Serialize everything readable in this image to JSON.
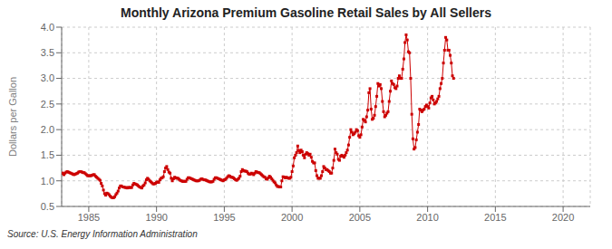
{
  "chart_data": {
    "type": "line",
    "title": "Monthly Arizona Premium Gasoline Retail Sales by All Sellers",
    "ylabel": "Dollars per Gallon",
    "annotations": [
      "Source: U.S. Energy Information Administration"
    ],
    "color": "#cc0000",
    "marker": "square",
    "grid": true,
    "xlim": [
      1983,
      2022
    ],
    "ylim": [
      0.5,
      4.0
    ],
    "xticks": [
      1985,
      1990,
      1995,
      2000,
      2005,
      2010,
      2015,
      2020
    ],
    "yticks": [
      0.5,
      {
        "value": 1.0,
        "label": "1.0"
      },
      1.5,
      {
        "value": 2.0,
        "label": "2.0"
      },
      2.5,
      {
        "value": 3.0,
        "label": "3.0"
      },
      3.5,
      {
        "value": 4.0,
        "label": "4.0"
      }
    ],
    "x": [
      1983,
      1983.0833333333333,
      1983.1666666666667,
      1983.25,
      1983.3333333333333,
      1983.4166666666667,
      1983.5,
      1983.5833333333333,
      1983.6666666666667,
      1983.75,
      1983.8333333333333,
      1983.9166666666667,
      1984,
      1984.0833333333333,
      1984.1666666666667,
      1984.25,
      1984.3333333333333,
      1984.4166666666667,
      1984.5,
      1984.5833333333333,
      1984.6666666666667,
      1984.75,
      1984.8333333333333,
      1984.9166666666667,
      1985,
      1985.0833333333333,
      1985.1666666666667,
      1985.25,
      1985.3333333333333,
      1985.4166666666667,
      1985.5,
      1985.5833333333333,
      1985.6666666666667,
      1985.75,
      1985.8333333333333,
      1985.9166666666667,
      1986,
      1986.0833333333333,
      1986.1666666666667,
      1986.25,
      1986.3333333333333,
      1986.4166666666667,
      1986.5,
      1986.5833333333333,
      1986.6666666666667,
      1986.75,
      1986.8333333333333,
      1986.9166666666667,
      1987,
      1987.0833333333333,
      1987.1666666666667,
      1987.25,
      1987.3333333333333,
      1987.4166666666667,
      1987.5,
      1987.5833333333333,
      1987.6666666666667,
      1987.75,
      1987.8333333333333,
      1987.9166666666667,
      1988,
      1988.0833333333333,
      1988.1666666666667,
      1988.25,
      1988.3333333333333,
      1988.4166666666667,
      1988.5,
      1988.5833333333333,
      1988.6666666666667,
      1988.75,
      1988.8333333333333,
      1988.9166666666667,
      1989,
      1989.0833333333333,
      1989.1666666666667,
      1989.25,
      1989.3333333333333,
      1989.4166666666667,
      1989.5,
      1989.5833333333333,
      1989.6666666666667,
      1989.75,
      1989.8333333333333,
      1989.9166666666667,
      1990,
      1990.0833333333333,
      1990.1666666666667,
      1990.25,
      1990.3333333333333,
      1990.4166666666667,
      1990.5,
      1990.5833333333333,
      1990.6666666666667,
      1990.75,
      1990.8333333333333,
      1990.9166666666667,
      1991,
      1991.0833333333333,
      1991.1666666666667,
      1991.25,
      1991.3333333333333,
      1991.4166666666667,
      1991.5,
      1991.5833333333333,
      1991.6666666666667,
      1991.75,
      1991.8333333333333,
      1991.9166666666667,
      1992,
      1992.0833333333333,
      1992.1666666666667,
      1992.25,
      1992.3333333333333,
      1992.4166666666667,
      1992.5,
      1992.5833333333333,
      1992.6666666666667,
      1992.75,
      1992.8333333333333,
      1992.9166666666667,
      1993,
      1993.0833333333333,
      1993.1666666666667,
      1993.25,
      1993.3333333333333,
      1993.4166666666667,
      1993.5,
      1993.5833333333333,
      1993.6666666666667,
      1993.75,
      1993.8333333333333,
      1993.9166666666667,
      1994,
      1994.0833333333333,
      1994.1666666666667,
      1994.25,
      1994.3333333333333,
      1994.4166666666667,
      1994.5,
      1994.5833333333333,
      1994.6666666666667,
      1994.75,
      1994.8333333333333,
      1994.9166666666667,
      1995,
      1995.0833333333333,
      1995.1666666666667,
      1995.25,
      1995.3333333333333,
      1995.4166666666667,
      1995.5,
      1995.5833333333333,
      1995.6666666666667,
      1995.75,
      1995.8333333333333,
      1995.9166666666667,
      1996,
      1996.0833333333333,
      1996.1666666666667,
      1996.25,
      1996.3333333333333,
      1996.4166666666667,
      1996.5,
      1996.5833333333333,
      1996.6666666666667,
      1996.75,
      1996.8333333333333,
      1996.9166666666667,
      1997,
      1997.0833333333333,
      1997.1666666666667,
      1997.25,
      1997.3333333333333,
      1997.4166666666667,
      1997.5,
      1997.5833333333333,
      1997.6666666666667,
      1997.75,
      1997.8333333333333,
      1997.9166666666667,
      1998,
      1998.0833333333333,
      1998.1666666666667,
      1998.25,
      1998.3333333333333,
      1998.4166666666667,
      1998.5,
      1998.5833333333333,
      1998.6666666666667,
      1998.75,
      1998.8333333333333,
      1998.9166666666667,
      1999,
      1999.0833333333333,
      1999.1666666666667,
      1999.25,
      1999.3333333333333,
      1999.4166666666667,
      1999.5,
      1999.5833333333333,
      1999.6666666666667,
      1999.75,
      1999.8333333333333,
      1999.9166666666667,
      2000,
      2000.0833333333333,
      2000.1666666666667,
      2000.25,
      2000.3333333333333,
      2000.4166666666667,
      2000.5,
      2000.5833333333333,
      2000.6666666666667,
      2000.75,
      2000.8333333333333,
      2000.9166666666667,
      2001,
      2001.0833333333333,
      2001.1666666666667,
      2001.25,
      2001.3333333333333,
      2001.4166666666667,
      2001.5,
      2001.5833333333333,
      2001.6666666666667,
      2001.75,
      2001.8333333333333,
      2001.9166666666667,
      2002,
      2002.0833333333333,
      2002.1666666666667,
      2002.25,
      2002.3333333333333,
      2002.4166666666667,
      2002.5,
      2002.5833333333333,
      2002.6666666666667,
      2002.75,
      2002.8333333333333,
      2002.9166666666667,
      2003,
      2003.0833333333333,
      2003.1666666666667,
      2003.25,
      2003.3333333333333,
      2003.4166666666667,
      2003.5,
      2003.5833333333333,
      2003.6666666666667,
      2003.75,
      2003.8333333333333,
      2003.9166666666667,
      2004,
      2004.0833333333333,
      2004.1666666666667,
      2004.25,
      2004.3333333333333,
      2004.4166666666667,
      2004.5,
      2004.5833333333333,
      2004.6666666666667,
      2004.75,
      2004.8333333333333,
      2004.9166666666667,
      2005,
      2005.0833333333333,
      2005.1666666666667,
      2005.25,
      2005.3333333333333,
      2005.4166666666667,
      2005.5,
      2005.5833333333333,
      2005.6666666666667,
      2005.75,
      2005.8333333333333,
      2005.9166666666667,
      2006,
      2006.0833333333333,
      2006.1666666666667,
      2006.25,
      2006.3333333333333,
      2006.4166666666667,
      2006.5,
      2006.5833333333333,
      2006.6666666666667,
      2006.75,
      2006.8333333333333,
      2006.9166666666667,
      2007,
      2007.0833333333333,
      2007.1666666666667,
      2007.25,
      2007.3333333333333,
      2007.4166666666667,
      2007.5,
      2007.5833333333333,
      2007.6666666666667,
      2007.75,
      2007.8333333333333,
      2007.9166666666667,
      2008,
      2008.0833333333333,
      2008.1666666666667,
      2008.25,
      2008.3333333333333,
      2008.4166666666667,
      2008.5,
      2008.5833333333333,
      2008.6666666666667,
      2008.75,
      2008.8333333333333,
      2008.9166666666667,
      2009,
      2009.0833333333333,
      2009.1666666666667,
      2009.25,
      2009.3333333333333,
      2009.4166666666667,
      2009.5,
      2009.5833333333333,
      2009.6666666666667,
      2009.75,
      2009.8333333333333,
      2009.9166666666667,
      2010,
      2010.0833333333333,
      2010.1666666666667,
      2010.25,
      2010.3333333333333,
      2010.4166666666667,
      2010.5,
      2010.5833333333333,
      2010.6666666666667,
      2010.75,
      2010.8333333333333,
      2010.9166666666667,
      2011,
      2011.0833333333333,
      2011.1666666666667,
      2011.25,
      2011.3333333333333,
      2011.4166666666667,
      2011.5,
      2011.5833333333333,
      2011.6666666666667,
      2011.75,
      2011.8333333333333,
      2011.9166666666667
    ],
    "values": [
      1.15,
      1.15,
      1.12,
      1.15,
      1.17,
      1.18,
      1.17,
      1.16,
      1.15,
      1.14,
      1.13,
      1.12,
      1.13,
      1.14,
      1.15,
      1.17,
      1.18,
      1.18,
      1.17,
      1.16,
      1.16,
      1.14,
      1.12,
      1.1,
      1.1,
      1.1,
      1.1,
      1.11,
      1.12,
      1.12,
      1.09,
      1.07,
      1.05,
      1.03,
      1.01,
      0.95,
      0.9,
      0.82,
      0.75,
      0.72,
      0.76,
      0.75,
      0.73,
      0.7,
      0.68,
      0.67,
      0.67,
      0.69,
      0.73,
      0.76,
      0.8,
      0.86,
      0.9,
      0.9,
      0.88,
      0.88,
      0.87,
      0.87,
      0.86,
      0.87,
      0.87,
      0.87,
      0.87,
      0.92,
      0.95,
      0.94,
      0.93,
      0.92,
      0.9,
      0.88,
      0.87,
      0.86,
      0.9,
      0.92,
      0.96,
      1.02,
      1.05,
      1.03,
      1.0,
      0.98,
      0.96,
      0.94,
      0.94,
      0.95,
      0.97,
      0.98,
      0.97,
      1.02,
      1.05,
      1.06,
      1.08,
      1.18,
      1.25,
      1.28,
      1.22,
      1.17,
      1.15,
      1.05,
      1.0,
      1.04,
      1.07,
      1.06,
      1.05,
      1.05,
      1.03,
      1.01,
      1.0,
      0.99,
      0.99,
      0.99,
      0.99,
      1.03,
      1.06,
      1.06,
      1.05,
      1.04,
      1.03,
      1.02,
      1.01,
      1.0,
      1.0,
      1.0,
      1.01,
      1.03,
      1.04,
      1.03,
      1.02,
      1.02,
      1.01,
      1.0,
      0.99,
      0.98,
      0.98,
      0.98,
      0.99,
      1.03,
      1.06,
      1.06,
      1.05,
      1.04,
      1.03,
      1.02,
      1.01,
      1.0,
      1.02,
      1.03,
      1.05,
      1.08,
      1.1,
      1.09,
      1.07,
      1.07,
      1.06,
      1.04,
      1.02,
      1.01,
      1.03,
      1.05,
      1.09,
      1.18,
      1.22,
      1.2,
      1.19,
      1.19,
      1.18,
      1.15,
      1.13,
      1.13,
      1.15,
      1.14,
      1.12,
      1.15,
      1.18,
      1.17,
      1.16,
      1.16,
      1.14,
      1.12,
      1.1,
      1.08,
      1.07,
      1.04,
      1.03,
      1.06,
      1.09,
      1.07,
      1.04,
      1.01,
      0.98,
      0.96,
      0.92,
      0.89,
      0.89,
      0.88,
      0.88,
      1.0,
      1.08,
      1.07,
      1.06,
      1.07,
      1.06,
      1.05,
      1.05,
      1.07,
      1.18,
      1.29,
      1.45,
      1.5,
      1.55,
      1.68,
      1.59,
      1.55,
      1.6,
      1.57,
      1.5,
      1.45,
      1.52,
      1.55,
      1.53,
      1.5,
      1.52,
      1.46,
      1.38,
      1.35,
      1.35,
      1.2,
      1.1,
      1.05,
      1.05,
      1.05,
      1.1,
      1.18,
      1.28,
      1.25,
      1.22,
      1.22,
      1.2,
      1.18,
      1.15,
      1.15,
      1.25,
      1.4,
      1.62,
      1.55,
      1.52,
      1.42,
      1.4,
      1.48,
      1.5,
      1.48,
      1.46,
      1.5,
      1.55,
      1.6,
      1.7,
      1.85,
      2.0,
      1.95,
      1.9,
      1.92,
      1.95,
      2.0,
      1.98,
      1.88,
      1.85,
      1.9,
      2.05,
      2.2,
      2.18,
      2.15,
      2.25,
      2.38,
      2.72,
      2.8,
      2.4,
      2.2,
      2.22,
      2.28,
      2.45,
      2.65,
      2.9,
      2.85,
      2.88,
      2.8,
      2.55,
      2.35,
      2.25,
      2.28,
      2.32,
      2.35,
      2.55,
      2.75,
      2.95,
      2.9,
      2.88,
      2.82,
      2.8,
      2.85,
      3.0,
      3.05,
      3.0,
      3.0,
      3.18,
      3.38,
      3.7,
      3.85,
      3.75,
      3.52,
      3.5,
      3.0,
      2.3,
      1.82,
      1.62,
      1.65,
      1.8,
      1.95,
      2.1,
      2.4,
      2.38,
      2.35,
      2.38,
      2.4,
      2.45,
      2.48,
      2.45,
      2.42,
      2.52,
      2.62,
      2.65,
      2.58,
      2.5,
      2.52,
      2.55,
      2.6,
      2.65,
      2.8,
      2.9,
      3.0,
      3.3,
      3.55,
      3.8,
      3.75,
      3.55,
      3.55,
      3.45,
      3.3,
      3.05,
      3.0
    ]
  }
}
